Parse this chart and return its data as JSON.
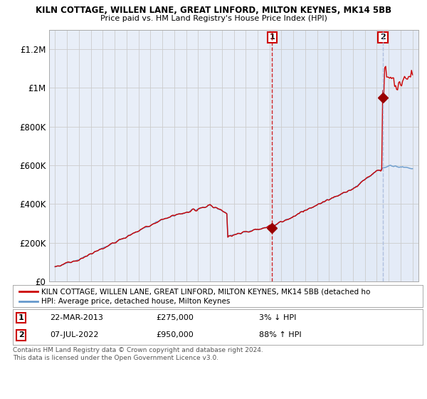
{
  "title1": "KILN COTTAGE, WILLEN LANE, GREAT LINFORD, MILTON KEYNES, MK14 5BB",
  "title2": "Price paid vs. HM Land Registry's House Price Index (HPI)",
  "ylim": [
    0,
    1300000
  ],
  "yticks": [
    0,
    200000,
    400000,
    600000,
    800000,
    1000000,
    1200000
  ],
  "ytick_labels": [
    "£0",
    "£200K",
    "£400K",
    "£600K",
    "£800K",
    "£1M",
    "£1.2M"
  ],
  "background_color": "#ffffff",
  "plot_bg_color": "#e8eef8",
  "grid_color": "#cccccc",
  "hpi_line_color": "#6699cc",
  "price_line_color": "#cc0000",
  "marker_color": "#990000",
  "vline1_color": "#cc0000",
  "vline2_color": "#aabbdd",
  "purchase1_year": 2013.22,
  "purchase1_price": 275000,
  "purchase2_year": 2022.52,
  "purchase2_price": 950000,
  "legend_line1": "KILN COTTAGE, WILLEN LANE, GREAT LINFORD, MILTON KEYNES, MK14 5BB (detached ho",
  "legend_line2": "HPI: Average price, detached house, Milton Keynes",
  "note1_date": "22-MAR-2013",
  "note1_price": "£275,000",
  "note1_pct": "3% ↓ HPI",
  "note2_date": "07-JUL-2022",
  "note2_price": "£950,000",
  "note2_pct": "88% ↑ HPI",
  "copyright": "Contains HM Land Registry data © Crown copyright and database right 2024.\nThis data is licensed under the Open Government Licence v3.0."
}
